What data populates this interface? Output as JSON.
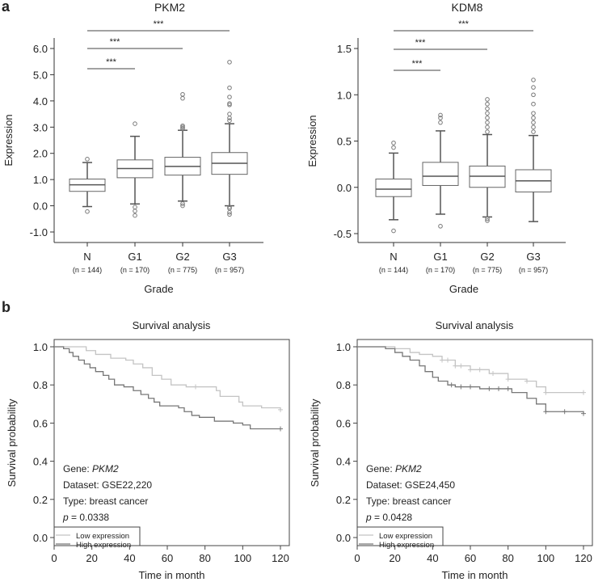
{
  "panels": {
    "a": "a",
    "b": "b"
  },
  "chart_data": [
    {
      "type": "box",
      "title": "PKM2",
      "ylabel": "Expression",
      "xlabel": "Grade",
      "ylim": [
        -1.0,
        6.0
      ],
      "yticks": [
        "6.0",
        "5.0",
        "4.0",
        "3.0",
        "2.0",
        "1.0",
        "0.0",
        "-1.0"
      ],
      "categories": [
        "N",
        "G1",
        "G2",
        "G3"
      ],
      "n_labels": [
        "(n = 144)",
        "(n = 170)",
        "(n = 775)",
        "(n = 957)"
      ],
      "significance": [
        {
          "from": "N",
          "to": "G1",
          "label": "***"
        },
        {
          "from": "N",
          "to": "G2",
          "label": "***"
        },
        {
          "from": "N",
          "to": "G3",
          "label": "***"
        }
      ],
      "boxes": [
        {
          "q1": 0.55,
          "median": 0.8,
          "q3": 1.02,
          "whisker_low": -0.03,
          "whisker_high": 1.65,
          "outliers": [
            1.78,
            -0.22
          ]
        },
        {
          "q1": 1.07,
          "median": 1.42,
          "q3": 1.75,
          "whisker_low": 0.07,
          "whisker_high": 2.65,
          "outliers": [
            3.13,
            -0.05,
            -0.2,
            -0.37
          ]
        },
        {
          "q1": 1.17,
          "median": 1.5,
          "q3": 1.85,
          "whisker_low": 0.18,
          "whisker_high": 2.88,
          "outliers": [
            2.95,
            3.0,
            3.05,
            4.1,
            4.25,
            0.0,
            0.08
          ]
        },
        {
          "q1": 1.2,
          "median": 1.62,
          "q3": 2.03,
          "whisker_low": 0.0,
          "whisker_high": 3.13,
          "outliers": [
            3.25,
            3.35,
            3.5,
            3.85,
            3.9,
            4.15,
            4.5,
            5.48,
            -0.05,
            -0.1,
            -0.25,
            -0.33
          ]
        }
      ]
    },
    {
      "type": "box",
      "title": "KDM8",
      "ylabel": "Expression",
      "xlabel": "Grade",
      "ylim": [
        -0.5,
        1.5
      ],
      "yticks": [
        "1.5",
        "1.0",
        "0.5",
        "0.0",
        "-0.5"
      ],
      "categories": [
        "N",
        "G1",
        "G2",
        "G3"
      ],
      "n_labels": [
        "(n = 144)",
        "(n = 170)",
        "(n = 775)",
        "(n = 957)"
      ],
      "significance": [
        {
          "from": "N",
          "to": "G1",
          "label": "***"
        },
        {
          "from": "N",
          "to": "G2",
          "label": "***"
        },
        {
          "from": "N",
          "to": "G3",
          "label": "***"
        }
      ],
      "boxes": [
        {
          "q1": -0.1,
          "median": -0.02,
          "q3": 0.09,
          "whisker_low": -0.35,
          "whisker_high": 0.37,
          "outliers": [
            0.43,
            0.48,
            -0.47
          ]
        },
        {
          "q1": 0.02,
          "median": 0.12,
          "q3": 0.27,
          "whisker_low": -0.29,
          "whisker_high": 0.61,
          "outliers": [
            0.7,
            0.75,
            0.78,
            -0.42
          ]
        },
        {
          "q1": 0.0,
          "median": 0.12,
          "q3": 0.23,
          "whisker_low": -0.32,
          "whisker_high": 0.57,
          "outliers": [
            0.6,
            0.65,
            0.7,
            0.75,
            0.8,
            0.85,
            0.9,
            0.95,
            -0.34,
            -0.36
          ]
        },
        {
          "q1": -0.05,
          "median": 0.07,
          "q3": 0.19,
          "whisker_low": -0.37,
          "whisker_high": 0.56,
          "outliers": [
            0.6,
            0.65,
            0.7,
            0.75,
            0.8,
            0.9,
            1.0,
            1.08,
            1.16
          ]
        }
      ]
    },
    {
      "type": "line",
      "title": "Survival analysis",
      "xlabel": "Time in month",
      "ylabel": "Survival probability",
      "xlim": [
        0,
        120
      ],
      "ylim": [
        0,
        1
      ],
      "xticks": [
        "0",
        "20",
        "40",
        "60",
        "80",
        "100",
        "120"
      ],
      "yticks": [
        "0.0",
        "0.2",
        "0.4",
        "0.6",
        "0.8",
        "1.0"
      ],
      "annotations": {
        "gene_label": "Gene: ",
        "gene": "PKM2",
        "dataset": "Dataset: GSE22,220",
        "type": "Type: breast cancer",
        "p_label": "p",
        "p_value": " = 0.0338"
      },
      "legend": "bottom-left",
      "series": [
        {
          "name": "Low expression",
          "color": "#c4c4c4",
          "x": [
            0,
            17,
            22,
            30,
            38,
            42,
            47,
            52,
            57,
            62,
            70,
            86,
            88,
            98,
            100,
            110,
            120
          ],
          "y": [
            1,
            0.98,
            0.96,
            0.94,
            0.93,
            0.91,
            0.89,
            0.85,
            0.83,
            0.8,
            0.79,
            0.77,
            0.74,
            0.71,
            0.69,
            0.68,
            0.67
          ],
          "censored": [
            75,
            120
          ]
        },
        {
          "name": "High expression",
          "color": "#777777",
          "x": [
            0,
            5,
            8,
            10,
            13,
            16,
            19,
            22,
            26,
            29,
            32,
            37,
            42,
            46,
            50,
            53,
            56,
            66,
            69,
            73,
            77,
            85,
            95,
            100,
            104,
            120
          ],
          "y": [
            1,
            0.99,
            0.97,
            0.95,
            0.93,
            0.91,
            0.89,
            0.87,
            0.85,
            0.83,
            0.8,
            0.79,
            0.77,
            0.75,
            0.73,
            0.71,
            0.69,
            0.68,
            0.66,
            0.64,
            0.63,
            0.61,
            0.6,
            0.59,
            0.57,
            0.57
          ],
          "censored": [
            120
          ]
        }
      ]
    },
    {
      "type": "line",
      "title": "Survival analysis",
      "xlabel": "Time in month",
      "ylabel": "Survival probability",
      "xlim": [
        0,
        120
      ],
      "ylim": [
        0,
        1
      ],
      "xticks": [
        "0",
        "20",
        "40",
        "60",
        "80",
        "100",
        "120"
      ],
      "yticks": [
        "0.0",
        "0.2",
        "0.4",
        "0.6",
        "0.8",
        "1.0"
      ],
      "annotations": {
        "gene_label": "Gene: ",
        "gene": "PKM2",
        "dataset": "Dataset: GSE24,450",
        "type": "Type: breast cancer",
        "p_label": "p",
        "p_value": " = 0.0428"
      },
      "legend": "bottom-left",
      "series": [
        {
          "name": "Low expression",
          "color": "#c4c4c4",
          "x": [
            0,
            20,
            28,
            33,
            40,
            45,
            52,
            60,
            70,
            80,
            90,
            95,
            100,
            120
          ],
          "y": [
            1,
            0.99,
            0.97,
            0.96,
            0.95,
            0.93,
            0.9,
            0.88,
            0.86,
            0.83,
            0.82,
            0.79,
            0.76,
            0.76
          ],
          "censored": [
            45,
            48,
            52,
            55,
            60,
            65,
            72,
            80,
            90,
            100,
            120
          ]
        },
        {
          "name": "High expression",
          "color": "#777777",
          "x": [
            0,
            15,
            20,
            24,
            28,
            33,
            36,
            40,
            43,
            48,
            52,
            65,
            82,
            90,
            95,
            100,
            120
          ],
          "y": [
            1,
            0.99,
            0.97,
            0.95,
            0.93,
            0.9,
            0.87,
            0.84,
            0.82,
            0.8,
            0.79,
            0.78,
            0.76,
            0.73,
            0.7,
            0.66,
            0.65
          ],
          "censored": [
            50,
            55,
            60,
            70,
            75,
            80,
            100,
            110,
            120
          ]
        }
      ]
    }
  ]
}
